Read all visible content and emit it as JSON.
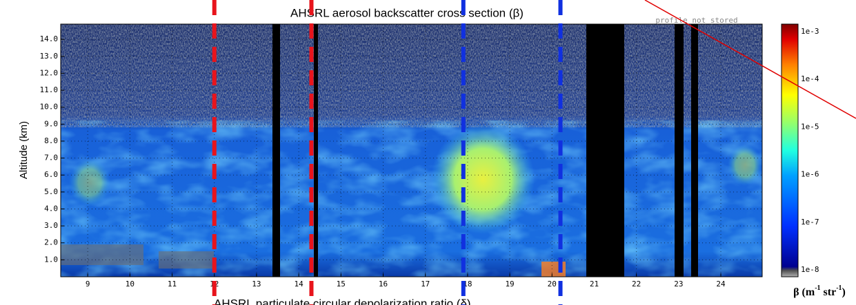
{
  "chart_data": {
    "type": "heatmap",
    "title": "AHSRL aerosol backscatter cross section (β)",
    "subtitle": "AHSRL particulate circular depolarization ratio (δ)",
    "annotation": "profile not stored",
    "ylabel": "Altitude (km)",
    "xlim": [
      8.36,
      24.98
    ],
    "xticks": [
      9,
      10,
      11,
      12,
      13,
      14,
      15,
      16,
      17,
      18,
      19,
      20,
      21,
      22,
      23,
      24
    ],
    "ylim": [
      0,
      14.9
    ],
    "yticks": [
      {
        "value": 1,
        "label": "1.0"
      },
      {
        "value": 2,
        "label": "2.0"
      },
      {
        "value": 3,
        "label": "3.0"
      },
      {
        "value": 4,
        "label": "4.0"
      },
      {
        "value": 5,
        "label": "5.0"
      },
      {
        "value": 6,
        "label": "6.0"
      },
      {
        "value": 7,
        "label": "7.0"
      },
      {
        "value": 8,
        "label": "8.0"
      },
      {
        "value": 9,
        "label": "9.0"
      },
      {
        "value": 10,
        "label": "10.0"
      },
      {
        "value": 11,
        "label": "11.0"
      },
      {
        "value": 12,
        "label": "12.0"
      },
      {
        "value": 13,
        "label": "13.0"
      },
      {
        "value": 14,
        "label": "14.0"
      }
    ],
    "grid": true,
    "colorbar": {
      "log": true,
      "lim": [
        7.2e-09,
        0.00144
      ],
      "ticks": [
        {
          "value": 0.001,
          "label": "1e-3"
        },
        {
          "value": 0.0001,
          "label": "1e-4"
        },
        {
          "value": 1e-05,
          "label": "1e-5"
        },
        {
          "value": 1e-06,
          "label": "1e-6"
        },
        {
          "value": 1e-07,
          "label": "1e-7"
        },
        {
          "value": 1e-08,
          "label": "1e-8"
        }
      ],
      "label": [
        "β (m",
        "-1",
        " str",
        "-1",
        ")"
      ]
    },
    "markers": [
      {
        "x": 12.0,
        "color": "#e8141c"
      },
      {
        "x": 14.3,
        "color": "#e8141c"
      },
      {
        "x": 17.9,
        "color": "#1030e0"
      },
      {
        "x": 20.2,
        "color": "#1030e0"
      }
    ]
  }
}
